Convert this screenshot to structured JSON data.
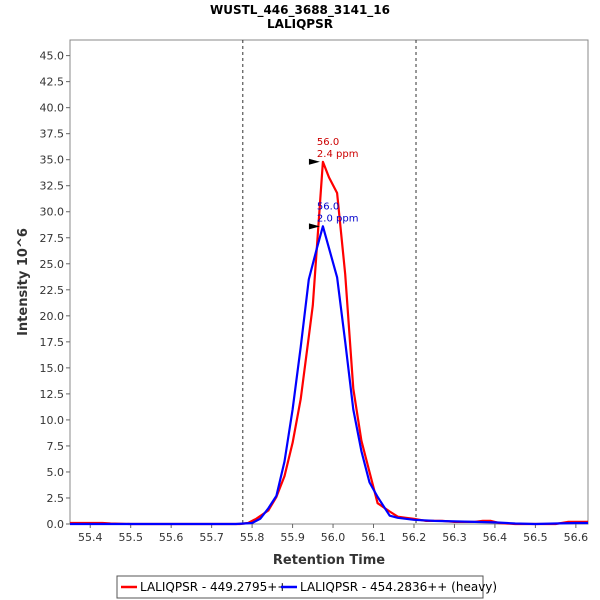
{
  "chart_data": {
    "type": "line",
    "title": "WUSTL_446_3688_3141_16",
    "subtitle": "LALIQPSR",
    "xlabel": "Retention Time",
    "ylabel": "Intensity 10^6",
    "xlim": [
      55.35,
      56.63
    ],
    "ylim": [
      0,
      46.5
    ],
    "x_ticks": [
      55.4,
      55.5,
      55.6,
      55.7,
      55.8,
      55.9,
      56.0,
      56.1,
      56.2,
      56.3,
      56.4,
      56.5,
      56.6
    ],
    "x_tick_labels": [
      "55.4",
      "55.5",
      "55.6",
      "55.7",
      "55.8",
      "55.9",
      "56.0",
      "56.1",
      "56.2",
      "56.3",
      "56.4",
      "56.5",
      "56.6"
    ],
    "y_ticks": [
      0,
      2.5,
      5,
      7.5,
      10,
      12.5,
      15,
      17.5,
      20,
      22.5,
      25,
      27.5,
      30,
      32.5,
      35,
      37.5,
      40,
      42.5,
      45
    ],
    "y_tick_labels": [
      "0.0",
      "2.5",
      "5.0",
      "7.5",
      "10.0",
      "12.5",
      "15.0",
      "17.5",
      "20.0",
      "22.5",
      "25.0",
      "27.5",
      "30.0",
      "32.5",
      "35.0",
      "37.5",
      "40.0",
      "42.5",
      "45.0"
    ],
    "vlines": [
      55.777,
      56.205
    ],
    "series": [
      {
        "name": "LALIQPSR - 449.2795++",
        "color": "#ff0000",
        "x": [
          55.35,
          55.37,
          55.39,
          55.41,
          55.43,
          55.45,
          55.5,
          55.6,
          55.7,
          55.77,
          55.79,
          55.81,
          55.84,
          55.86,
          55.88,
          55.9,
          55.92,
          55.94,
          55.95,
          55.975,
          55.99,
          56.01,
          56.03,
          56.05,
          56.07,
          56.09,
          56.11,
          56.14,
          56.16,
          56.18,
          56.2,
          56.23,
          56.27,
          56.3,
          56.35,
          56.37,
          56.39,
          56.41,
          56.45,
          56.5,
          56.55,
          56.58,
          56.6,
          56.63
        ],
        "y": [
          0.1,
          0.1,
          0.1,
          0.1,
          0.1,
          0.05,
          0.0,
          0.0,
          0.0,
          0.0,
          0.1,
          0.5,
          1.3,
          2.6,
          4.6,
          7.8,
          12.0,
          18.0,
          21.0,
          34.8,
          33.3,
          31.8,
          24.0,
          13.0,
          8.0,
          5.0,
          2.0,
          1.2,
          0.7,
          0.6,
          0.5,
          0.3,
          0.3,
          0.2,
          0.2,
          0.3,
          0.3,
          0.1,
          0.0,
          0.0,
          0.0,
          0.2,
          0.2,
          0.2
        ]
      },
      {
        "name": "LALIQPSR - 454.2836++ (heavy)",
        "color": "#0000ff",
        "x": [
          55.35,
          55.4,
          55.5,
          55.6,
          55.7,
          55.76,
          55.78,
          55.8,
          55.82,
          55.84,
          55.86,
          55.88,
          55.9,
          55.92,
          55.94,
          55.96,
          55.975,
          55.99,
          56.01,
          56.03,
          56.05,
          56.07,
          56.09,
          56.11,
          56.14,
          56.16,
          56.2,
          56.25,
          56.3,
          56.35,
          56.4,
          56.45,
          56.5,
          56.55,
          56.6,
          56.63
        ],
        "y": [
          0.0,
          0.0,
          0.0,
          0.0,
          0.0,
          0.0,
          0.05,
          0.1,
          0.5,
          1.5,
          2.7,
          6.0,
          11.0,
          17.0,
          23.5,
          26.5,
          28.6,
          26.5,
          23.7,
          17.5,
          11.0,
          7.0,
          4.0,
          2.6,
          0.8,
          0.6,
          0.4,
          0.3,
          0.25,
          0.2,
          0.15,
          0.05,
          0.0,
          0.05,
          0.1,
          0.1
        ]
      }
    ],
    "annotations": [
      {
        "x": 55.975,
        "y": 34.8,
        "line1": "56.0",
        "line2": "2.4 ppm",
        "color": "#cc0000"
      },
      {
        "x": 55.975,
        "y": 28.6,
        "line1": "56.0",
        "line2": "2.0 ppm",
        "color": "#0000cc"
      }
    ],
    "legend_position": "bottom"
  }
}
